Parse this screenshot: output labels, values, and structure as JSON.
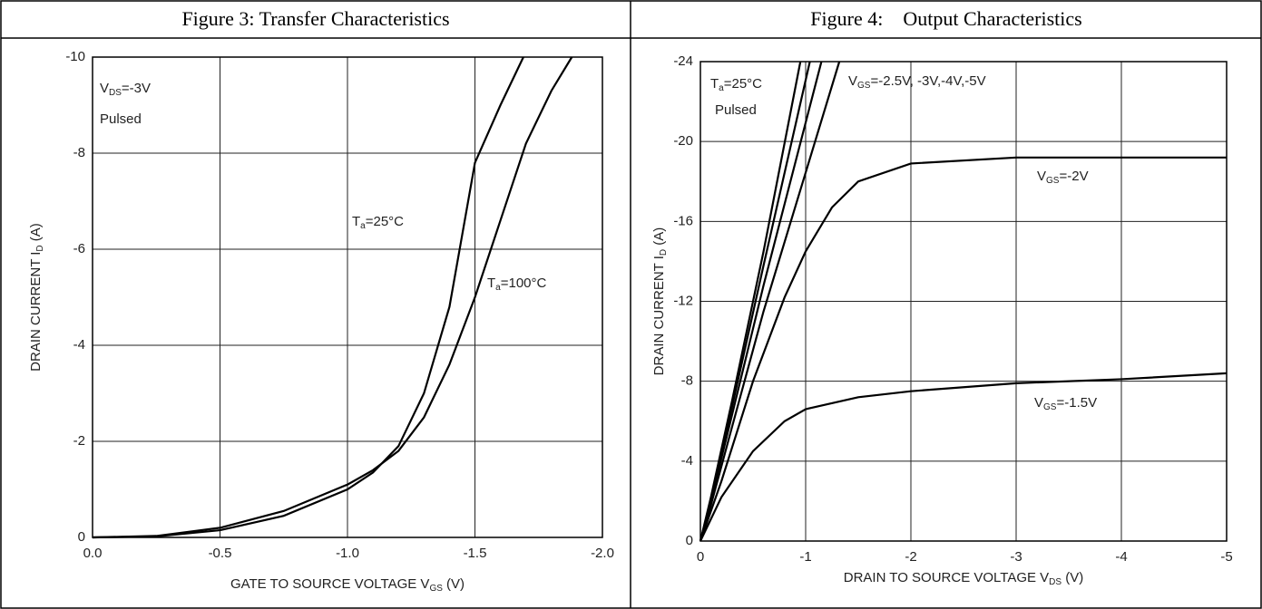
{
  "chart_data": [
    {
      "type": "line",
      "title": "Figure 3: Transfer Characteristics",
      "x_label": [
        "GATE TO SOURCE VOLTAGE V",
        "GS",
        " (V)"
      ],
      "y_label": [
        "DRAIN CURRENT I",
        "D",
        " (A)"
      ],
      "xlim": [
        0,
        -2
      ],
      "ylim": [
        0,
        -10
      ],
      "xticks": [
        {
          "value": 0,
          "label": "0.0"
        },
        -0.5,
        {
          "value": -1,
          "label": "-1.0"
        },
        -1.5,
        {
          "value": -2,
          "label": "-2.0"
        }
      ],
      "yticks": [
        0,
        -2,
        -4,
        -6,
        -8,
        -10
      ],
      "grid": true,
      "annotations": [
        [
          "V",
          "DS",
          "=-3V"
        ],
        [
          "Pulsed"
        ],
        [
          "T",
          "a",
          "=25°C"
        ],
        [
          "T",
          "a",
          "=100°C"
        ]
      ],
      "series": [
        {
          "color": "#000000",
          "x": [
            0,
            -0.25,
            -0.5,
            -0.75,
            -1.0,
            -1.1,
            -1.2,
            -1.3,
            -1.4,
            -1.5,
            -1.6,
            -1.69
          ],
          "values": [
            0,
            -0.02,
            -0.15,
            -0.45,
            -1.0,
            -1.35,
            -1.9,
            -3.0,
            -4.8,
            -7.8,
            -9.0,
            -10
          ]
        },
        {
          "color": "#000000",
          "x": [
            0,
            -0.25,
            -0.5,
            -0.75,
            -1.0,
            -1.1,
            -1.2,
            -1.3,
            -1.4,
            -1.5,
            -1.6,
            -1.7,
            -1.8,
            -1.88
          ],
          "values": [
            0,
            -0.03,
            -0.2,
            -0.55,
            -1.1,
            -1.4,
            -1.8,
            -2.5,
            -3.6,
            -5.0,
            -6.6,
            -8.2,
            -9.3,
            -10
          ]
        }
      ]
    },
    {
      "type": "line",
      "title": "Figure 4:    Output Characteristics",
      "x_label": [
        "DRAIN TO SOURCE VOLTAGE V",
        "DS",
        " (V)"
      ],
      "y_label": [
        "DRAIN CURRENT I",
        "D",
        " (A)"
      ],
      "xlim": [
        0,
        -5
      ],
      "ylim": [
        0,
        -24
      ],
      "xticks": [
        0,
        -1,
        -2,
        -3,
        -4,
        -5
      ],
      "yticks": [
        0,
        -4,
        -8,
        -12,
        -16,
        -20,
        -24
      ],
      "grid": true,
      "annotations": [
        [
          "T",
          "a",
          "=25°C"
        ],
        [
          "Pulsed"
        ],
        [
          "V",
          "GS",
          "=-2.5V, -3V,-4V,-5V"
        ],
        [
          "V",
          "GS",
          "=-2V"
        ],
        [
          "V",
          "GS",
          "=-1.5V"
        ]
      ],
      "series": [
        {
          "color": "#000000",
          "x": [
            0,
            -0.1,
            -0.3,
            -0.6,
            -0.95
          ],
          "values": [
            0,
            -2.2,
            -7,
            -14.5,
            -24
          ]
        },
        {
          "color": "#000000",
          "x": [
            0,
            -0.1,
            -0.3,
            -0.6,
            -1.04
          ],
          "values": [
            0,
            -2.1,
            -6.7,
            -13.8,
            -24
          ]
        },
        {
          "color": "#000000",
          "x": [
            0,
            -0.1,
            -0.3,
            -0.6,
            -1.15
          ],
          "values": [
            0,
            -2.0,
            -6.3,
            -12.8,
            -24
          ]
        },
        {
          "color": "#000000",
          "x": [
            0,
            -0.1,
            -0.3,
            -0.6,
            -1.32
          ],
          "values": [
            0,
            -1.8,
            -5.7,
            -11.5,
            -24
          ]
        },
        {
          "color": "#000000",
          "x": [
            0,
            -0.2,
            -0.5,
            -0.8,
            -1.0,
            -1.25,
            -1.5,
            -2,
            -3,
            -5
          ],
          "values": [
            0,
            -3,
            -8,
            -12.2,
            -14.5,
            -16.7,
            -18,
            -18.9,
            -19.2,
            -19.2
          ]
        },
        {
          "color": "#000000",
          "x": [
            0,
            -0.2,
            -0.5,
            -0.8,
            -1.0,
            -1.5,
            -2,
            -3,
            -4,
            -5
          ],
          "values": [
            0,
            -2.2,
            -4.5,
            -6.0,
            -6.6,
            -7.2,
            -7.5,
            -7.9,
            -8.1,
            -8.4
          ]
        }
      ]
    }
  ]
}
